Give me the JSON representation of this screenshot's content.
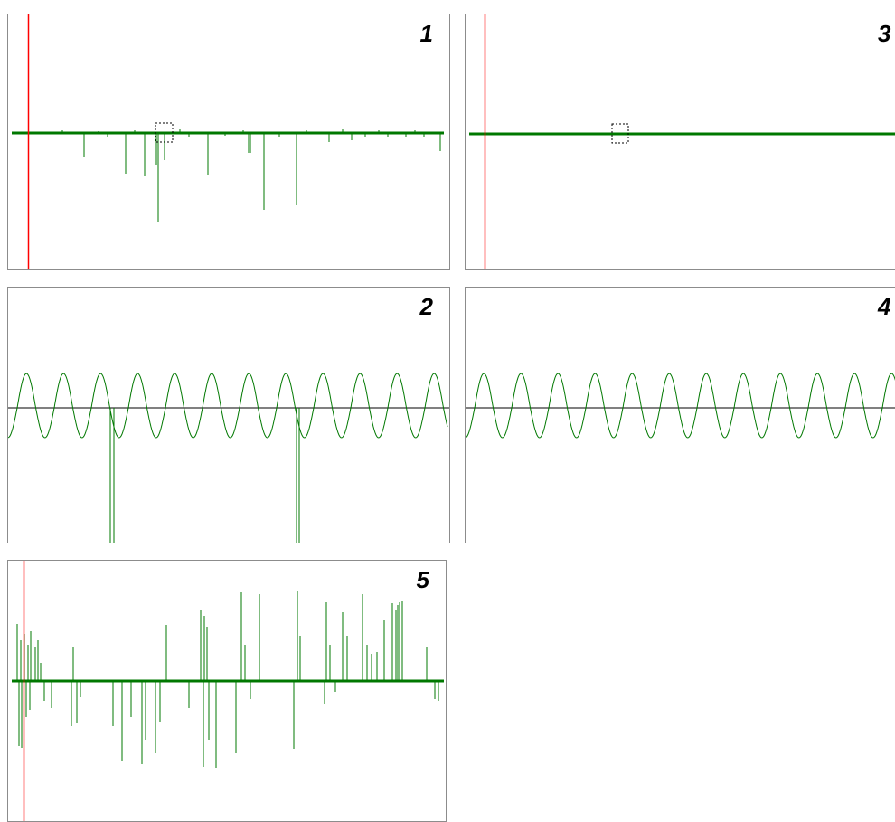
{
  "panels": [
    {
      "id": "1",
      "number": "1",
      "kind": "spikes",
      "cursor_visible": true,
      "selection_box_visible": true
    },
    {
      "id": "3",
      "number": "3",
      "kind": "flat",
      "cursor_visible": true,
      "selection_box_visible": true
    },
    {
      "id": "2",
      "number": "2",
      "kind": "sine",
      "cursor_visible": false,
      "selection_box_visible": false
    },
    {
      "id": "4",
      "number": "4",
      "kind": "sine",
      "cursor_visible": false,
      "selection_box_visible": false
    },
    {
      "id": "5",
      "number": "5",
      "kind": "bipolar-spikes",
      "cursor_visible": true,
      "selection_box_visible": false
    }
  ],
  "colors": {
    "trace": "#007800",
    "cursor": "#ff0000",
    "axis": "#000000",
    "border": "#8c8c8c",
    "background": "#ffffff"
  }
}
